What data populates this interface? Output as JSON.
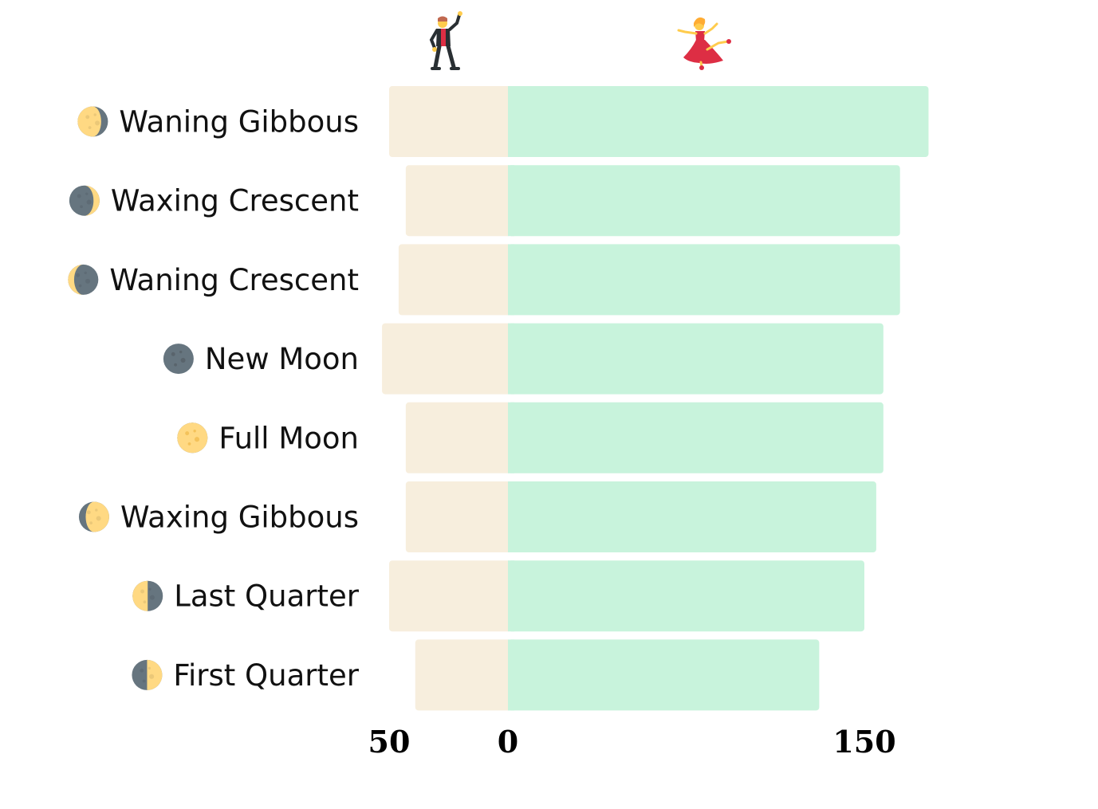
{
  "chart_data": {
    "type": "bar",
    "orientation": "horizontal",
    "diverging": true,
    "categories": [
      "Waning Gibbous",
      "Waxing Crescent",
      "Waning Crescent",
      "New Moon",
      "Full Moon",
      "Waxing Gibbous",
      "Last Quarter",
      "First Quarter"
    ],
    "category_icons": [
      "waning-gibbous-moon-icon",
      "waxing-crescent-moon-icon",
      "waning-crescent-moon-icon",
      "new-moon-icon",
      "full-moon-icon",
      "waxing-gibbous-moon-icon",
      "last-quarter-moon-icon",
      "first-quarter-moon-icon"
    ],
    "series": [
      {
        "icon": "man-dancing-icon",
        "side": "left",
        "color": "#f7eedd",
        "values": [
          50,
          43,
          46,
          53,
          43,
          43,
          50,
          39
        ]
      },
      {
        "icon": "woman-dancing-icon",
        "side": "right",
        "color": "#c8f3dc",
        "values": [
          177,
          165,
          165,
          158,
          158,
          155,
          150,
          131
        ]
      }
    ],
    "xticks": [
      {
        "value": -50,
        "label": "50"
      },
      {
        "value": 0,
        "label": "0"
      },
      {
        "value": 150,
        "label": "150"
      }
    ],
    "title": "",
    "xlabel": "",
    "ylabel": "",
    "grid": false,
    "legend": "icons above bars"
  }
}
